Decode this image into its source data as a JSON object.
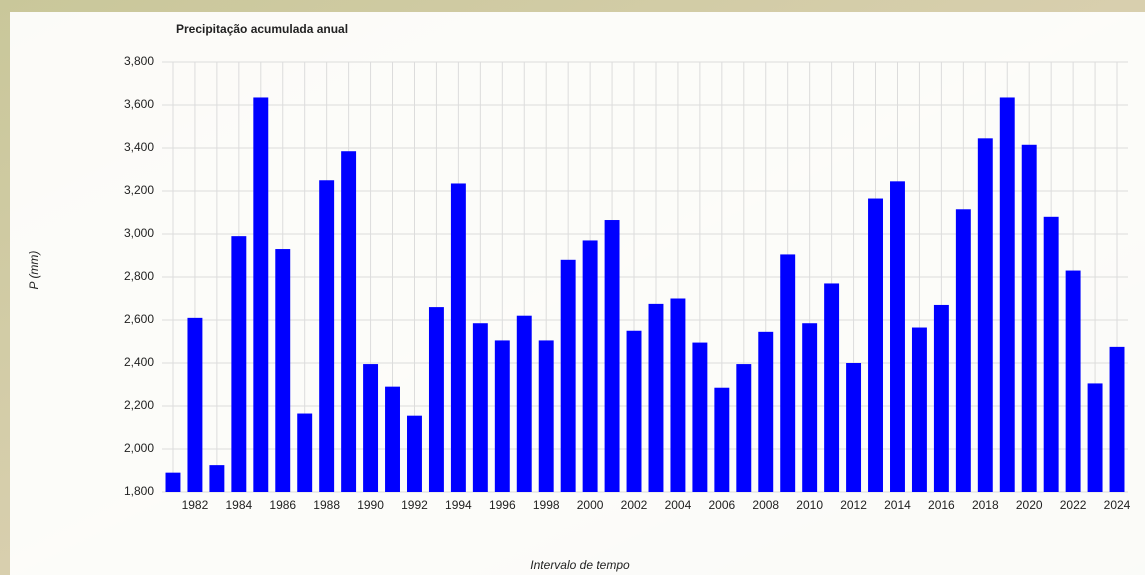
{
  "chart_data": {
    "type": "bar",
    "title": "Precipitação acumulada anual",
    "x_label": "Intervalo de tempo",
    "y_label": "P (mm)",
    "categories": [
      null,
      "1982",
      null,
      "1984",
      null,
      "1986",
      null,
      "1988",
      null,
      "1990",
      null,
      "1992",
      null,
      "1994",
      null,
      "1996",
      null,
      "1998",
      null,
      "2000",
      null,
      "2002",
      null,
      "2004",
      null,
      "2006",
      null,
      "2008",
      null,
      "2010",
      null,
      "2012",
      null,
      "2014",
      null,
      "2016",
      null,
      "2018",
      null,
      "2020",
      null,
      "2022",
      null,
      "2024"
    ],
    "values": [
      1890,
      2610,
      1925,
      2990,
      3635,
      2930,
      2165,
      3250,
      3385,
      2395,
      2290,
      2155,
      2660,
      3235,
      2585,
      2505,
      2620,
      2505,
      2880,
      2970,
      3065,
      2550,
      2675,
      2700,
      2495,
      2285,
      2395,
      2545,
      2905,
      2585,
      2770,
      2400,
      3165,
      3245,
      2565,
      2670,
      3115,
      3445,
      3635,
      3415,
      3080,
      2830,
      2305,
      2475
    ],
    "color": "#0000ff",
    "ylim": [
      1800,
      3800
    ],
    "yticks": [
      {
        "value": 1800,
        "label": "1,800"
      },
      {
        "value": 2000,
        "label": "2,000"
      },
      {
        "value": 2200,
        "label": "2,200"
      },
      {
        "value": 2400,
        "label": "2,400"
      },
      {
        "value": 2600,
        "label": "2,600"
      },
      {
        "value": 2800,
        "label": "2,800"
      },
      {
        "value": 3000,
        "label": "3,000"
      },
      {
        "value": 3200,
        "label": "3,200"
      },
      {
        "value": 3400,
        "label": "3,400"
      },
      {
        "value": 3600,
        "label": "3,600"
      },
      {
        "value": 3800,
        "label": "3,800"
      }
    ],
    "grid": true
  }
}
